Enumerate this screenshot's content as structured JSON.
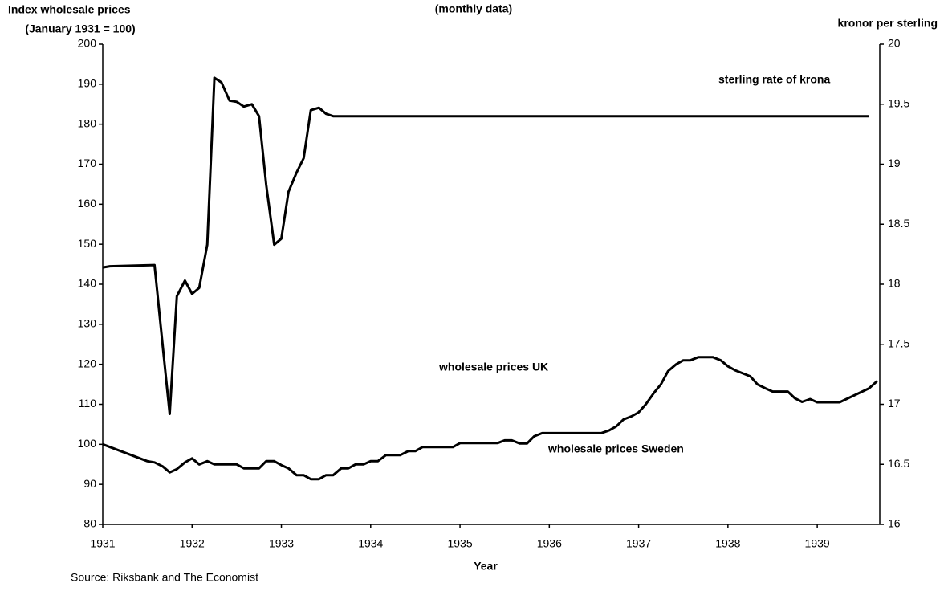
{
  "chart_data": {
    "type": "line",
    "title": "(monthly data)",
    "ylabel": [
      "Index wholesale prices",
      "(January 1931 = 100)"
    ],
    "y2label": "kronor per sterling",
    "xlabel": "Year",
    "source": "Source: Riksbank and The Economist",
    "annotations": [
      "wholesale prices UK"
    ],
    "xlim": [
      1931,
      1939.7
    ],
    "xticks": [
      1931,
      1932,
      1933,
      1934,
      1935,
      1936,
      1937,
      1938,
      1939
    ],
    "ylim": [
      80,
      200
    ],
    "yticks": [
      80,
      90,
      100,
      110,
      120,
      130,
      140,
      150,
      160,
      170,
      180,
      190,
      200
    ],
    "y2lim": [
      16,
      20
    ],
    "y2ticks": [
      16,
      16.5,
      17,
      17.5,
      18,
      18.5,
      19,
      19.5,
      20
    ],
    "series": [
      {
        "name": "wholesale prices Sweden",
        "color": "#000000",
        "x": [
          1931.0,
          1931.5,
          1931.58,
          1931.67,
          1931.75,
          1931.83,
          1931.92,
          1932.0,
          1932.08,
          1932.17,
          1932.25,
          1932.5,
          1932.58,
          1932.75,
          1932.83,
          1932.92,
          1933.0,
          1933.08,
          1933.17,
          1933.25,
          1933.33,
          1933.42,
          1933.5,
          1933.58,
          1933.67,
          1933.75,
          1933.83,
          1933.92,
          1934.0,
          1934.08,
          1934.17,
          1934.33,
          1934.42,
          1934.5,
          1934.58,
          1934.92,
          1935.0,
          1935.42,
          1935.5,
          1935.58,
          1935.67,
          1935.75,
          1935.83,
          1935.92,
          1936.58,
          1936.67,
          1936.75,
          1936.83,
          1936.92,
          1937.0,
          1937.08,
          1937.17,
          1937.25,
          1937.33,
          1937.42,
          1937.5,
          1937.58,
          1937.67,
          1937.83,
          1937.92,
          1938.0,
          1938.08,
          1938.25,
          1938.33,
          1938.42,
          1938.5,
          1938.67,
          1938.75,
          1938.83,
          1938.92,
          1939.0,
          1939.25,
          1939.58,
          1939.67
        ],
        "values": [
          100,
          95.8,
          95.5,
          94.5,
          93,
          93.8,
          95.5,
          96.5,
          95,
          95.8,
          95,
          95,
          94,
          94,
          95.8,
          95.8,
          94.8,
          94,
          92.3,
          92.3,
          91.3,
          91.3,
          92.3,
          92.3,
          94,
          94,
          95,
          95,
          95.8,
          95.8,
          97.3,
          97.3,
          98.3,
          98.3,
          99.3,
          99.3,
          100.3,
          100.3,
          101,
          101,
          100.2,
          100.2,
          102,
          102.8,
          102.8,
          103.5,
          104.5,
          106.2,
          107,
          108,
          110,
          112.8,
          115,
          118.3,
          120,
          121,
          121,
          121.8,
          121.8,
          121,
          119.5,
          118.5,
          117,
          115,
          114,
          113.2,
          113.2,
          111.5,
          110.6,
          111.3,
          110.5,
          110.5,
          114,
          115.8
        ]
      },
      {
        "name": "sterling rate of krona",
        "color": "#000000",
        "axis": "y2",
        "x": [
          1931.0,
          1931.08,
          1931.58,
          1931.67,
          1931.75,
          1931.83,
          1931.92,
          1932.0,
          1932.08,
          1932.17,
          1932.25,
          1932.33,
          1932.42,
          1932.5,
          1932.58,
          1932.67,
          1932.75,
          1932.83,
          1932.92,
          1933.0,
          1933.08,
          1933.17,
          1933.25,
          1933.33,
          1933.42,
          1933.5,
          1933.58,
          1939.58
        ],
        "values": [
          18.14,
          18.15,
          18.16,
          17.5,
          16.92,
          17.9,
          18.03,
          17.92,
          17.97,
          18.33,
          19.72,
          19.68,
          19.53,
          19.52,
          19.48,
          19.5,
          19.4,
          18.83,
          18.33,
          18.38,
          18.77,
          18.93,
          19.05,
          19.45,
          19.47,
          19.42,
          19.4,
          19.4
        ]
      }
    ]
  }
}
